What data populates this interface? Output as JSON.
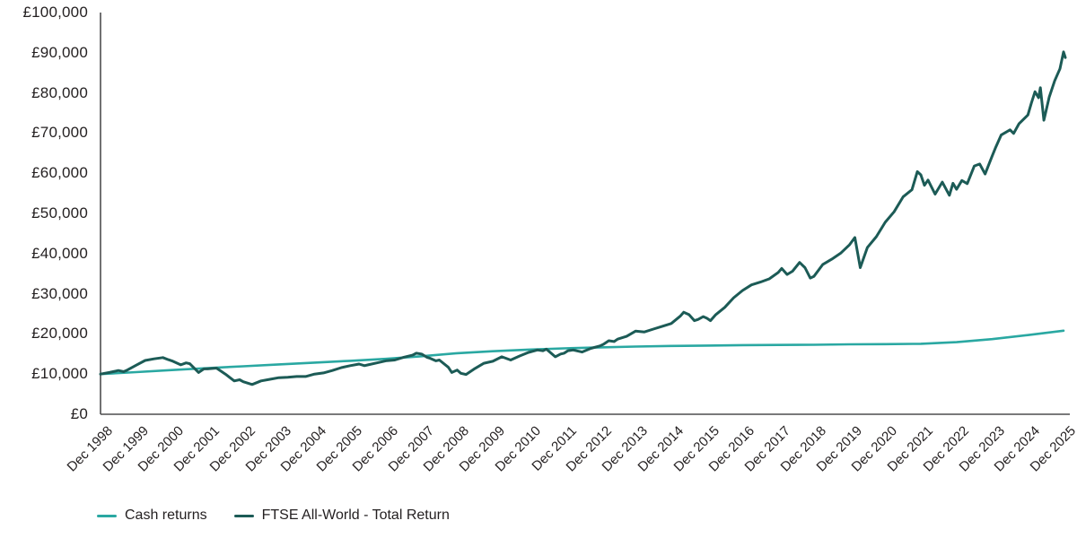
{
  "chart_data": {
    "type": "line",
    "title": "",
    "xlabel": "",
    "ylabel": "",
    "currency": "GBP",
    "grid": false,
    "legend_position": "bottom-left",
    "ylim": [
      0,
      100000
    ],
    "x_range_years_from_first_tick": [
      0,
      27
    ],
    "y_ticks": [
      {
        "value": 0,
        "label": "£0"
      },
      {
        "value": 10000,
        "label": "£10,000"
      },
      {
        "value": 20000,
        "label": "£20,000"
      },
      {
        "value": 30000,
        "label": "£30,000"
      },
      {
        "value": 40000,
        "label": "£40,000"
      },
      {
        "value": 50000,
        "label": "£50,000"
      },
      {
        "value": 60000,
        "label": "£60,000"
      },
      {
        "value": 70000,
        "label": "£70,000"
      },
      {
        "value": 80000,
        "label": "£80,000"
      },
      {
        "value": 90000,
        "label": "£90,000"
      },
      {
        "value": 100000,
        "label": "£100,000"
      }
    ],
    "x_ticks": [
      "Dec 1998",
      "Dec 1999",
      "Dec 2000",
      "Dec 2001",
      "Dec 2002",
      "Dec 2003",
      "Dec 2004",
      "Dec 2005",
      "Dec 2006",
      "Dec 2007",
      "Dec 2008",
      "Dec 2009",
      "Dec 2010",
      "Dec 2011",
      "Dec 2012",
      "Dec 2013",
      "Dec 2014",
      "Dec 2015",
      "Dec 2016",
      "Dec 2017",
      "Dec 2018",
      "Dec 2019",
      "Dec 2020",
      "Dec 2021",
      "Dec 2022",
      "Dec 2023",
      "Dec 2024",
      "Dec 2025"
    ],
    "colors": {
      "axis": "#4d4d4f",
      "text": "#231f20",
      "cash_line": "#2aa8a2",
      "ftse_line": "#1c5b56"
    },
    "series": [
      {
        "name": "Cash returns",
        "color": "#2aa8a2",
        "stroke_width": 2.6,
        "points": [
          [
            0,
            10000
          ],
          [
            1,
            10500
          ],
          [
            2,
            11000
          ],
          [
            3,
            11500
          ],
          [
            4,
            11950
          ],
          [
            5,
            12400
          ],
          [
            6,
            12850
          ],
          [
            7,
            13300
          ],
          [
            8,
            13800
          ],
          [
            9,
            14450
          ],
          [
            10,
            15200
          ],
          [
            11,
            15700
          ],
          [
            12,
            16100
          ],
          [
            13,
            16400
          ],
          [
            14,
            16650
          ],
          [
            15,
            16850
          ],
          [
            16,
            17000
          ],
          [
            17,
            17100
          ],
          [
            18,
            17200
          ],
          [
            19,
            17250
          ],
          [
            20,
            17300
          ],
          [
            21,
            17400
          ],
          [
            22,
            17450
          ],
          [
            23,
            17550
          ],
          [
            24,
            17950
          ],
          [
            25,
            18700
          ],
          [
            26,
            19700
          ],
          [
            27,
            20800
          ]
        ]
      },
      {
        "name": "FTSE All-World - Total Return",
        "color": "#1c5b56",
        "stroke_width": 3,
        "points": [
          [
            0,
            10000
          ],
          [
            0.25,
            10400
          ],
          [
            0.5,
            10900
          ],
          [
            0.65,
            10600
          ],
          [
            0.75,
            11000
          ],
          [
            1,
            12200
          ],
          [
            1.25,
            13400
          ],
          [
            1.5,
            13800
          ],
          [
            1.75,
            14100
          ],
          [
            1.9,
            13600
          ],
          [
            2,
            13300
          ],
          [
            2.25,
            12300
          ],
          [
            2.4,
            12800
          ],
          [
            2.5,
            12600
          ],
          [
            2.75,
            10400
          ],
          [
            2.9,
            11300
          ],
          [
            3,
            11300
          ],
          [
            3.25,
            11500
          ],
          [
            3.5,
            10000
          ],
          [
            3.75,
            8300
          ],
          [
            3.9,
            8600
          ],
          [
            4,
            8100
          ],
          [
            4.25,
            7400
          ],
          [
            4.5,
            8300
          ],
          [
            4.75,
            8700
          ],
          [
            5,
            9100
          ],
          [
            5.25,
            9200
          ],
          [
            5.5,
            9400
          ],
          [
            5.75,
            9400
          ],
          [
            6,
            10000
          ],
          [
            6.25,
            10300
          ],
          [
            6.5,
            10900
          ],
          [
            6.75,
            11600
          ],
          [
            7,
            12100
          ],
          [
            7.25,
            12500
          ],
          [
            7.4,
            12100
          ],
          [
            7.5,
            12300
          ],
          [
            7.75,
            12800
          ],
          [
            8,
            13300
          ],
          [
            8.25,
            13500
          ],
          [
            8.5,
            14200
          ],
          [
            8.75,
            14700
          ],
          [
            8.85,
            15200
          ],
          [
            9,
            15000
          ],
          [
            9.15,
            14200
          ],
          [
            9.25,
            13900
          ],
          [
            9.4,
            13300
          ],
          [
            9.5,
            13500
          ],
          [
            9.75,
            11700
          ],
          [
            9.85,
            10400
          ],
          [
            10,
            11000
          ],
          [
            10.1,
            10200
          ],
          [
            10.25,
            9900
          ],
          [
            10.5,
            11400
          ],
          [
            10.75,
            12700
          ],
          [
            11,
            13200
          ],
          [
            11.25,
            14300
          ],
          [
            11.5,
            13500
          ],
          [
            11.75,
            14500
          ],
          [
            12,
            15400
          ],
          [
            12.25,
            16000
          ],
          [
            12.4,
            15800
          ],
          [
            12.5,
            16200
          ],
          [
            12.75,
            14300
          ],
          [
            12.9,
            15000
          ],
          [
            13,
            15200
          ],
          [
            13.1,
            15800
          ],
          [
            13.25,
            16000
          ],
          [
            13.5,
            15500
          ],
          [
            13.75,
            16400
          ],
          [
            14,
            17000
          ],
          [
            14.1,
            17400
          ],
          [
            14.25,
            18300
          ],
          [
            14.4,
            18100
          ],
          [
            14.5,
            18700
          ],
          [
            14.75,
            19400
          ],
          [
            15,
            20700
          ],
          [
            15.25,
            20500
          ],
          [
            15.5,
            21200
          ],
          [
            15.75,
            21900
          ],
          [
            16,
            22600
          ],
          [
            16.25,
            24400
          ],
          [
            16.35,
            25400
          ],
          [
            16.5,
            24800
          ],
          [
            16.65,
            23300
          ],
          [
            16.75,
            23600
          ],
          [
            16.9,
            24300
          ],
          [
            17,
            23900
          ],
          [
            17.1,
            23300
          ],
          [
            17.25,
            24800
          ],
          [
            17.5,
            26600
          ],
          [
            17.75,
            29000
          ],
          [
            18,
            30800
          ],
          [
            18.25,
            32200
          ],
          [
            18.5,
            32900
          ],
          [
            18.75,
            33700
          ],
          [
            19,
            35300
          ],
          [
            19.1,
            36300
          ],
          [
            19.25,
            34800
          ],
          [
            19.4,
            35600
          ],
          [
            19.6,
            37800
          ],
          [
            19.75,
            36500
          ],
          [
            19.9,
            33900
          ],
          [
            20,
            34300
          ],
          [
            20.25,
            37300
          ],
          [
            20.5,
            38600
          ],
          [
            20.75,
            40100
          ],
          [
            21,
            42200
          ],
          [
            21.15,
            44000
          ],
          [
            21.3,
            36500
          ],
          [
            21.5,
            41500
          ],
          [
            21.75,
            44200
          ],
          [
            22,
            47800
          ],
          [
            22.25,
            50400
          ],
          [
            22.5,
            54100
          ],
          [
            22.75,
            55900
          ],
          [
            22.9,
            60400
          ],
          [
            23,
            59600
          ],
          [
            23.1,
            57000
          ],
          [
            23.2,
            58300
          ],
          [
            23.4,
            54800
          ],
          [
            23.6,
            57800
          ],
          [
            23.8,
            54500
          ],
          [
            23.9,
            57500
          ],
          [
            24,
            56000
          ],
          [
            24.15,
            58200
          ],
          [
            24.3,
            57400
          ],
          [
            24.5,
            61800
          ],
          [
            24.65,
            62300
          ],
          [
            24.8,
            59800
          ],
          [
            25,
            64300
          ],
          [
            25.1,
            66500
          ],
          [
            25.25,
            69500
          ],
          [
            25.5,
            70800
          ],
          [
            25.6,
            69900
          ],
          [
            25.75,
            72300
          ],
          [
            26,
            74500
          ],
          [
            26.1,
            77500
          ],
          [
            26.2,
            80300
          ],
          [
            26.3,
            78800
          ],
          [
            26.35,
            81300
          ],
          [
            26.45,
            73200
          ],
          [
            26.6,
            79000
          ],
          [
            26.75,
            83000
          ],
          [
            26.9,
            86000
          ],
          [
            27,
            90200
          ],
          [
            27.05,
            88800
          ]
        ]
      }
    ]
  },
  "legend": {
    "items": [
      {
        "label": "Cash returns"
      },
      {
        "label": "FTSE All-World - Total Return"
      }
    ]
  }
}
